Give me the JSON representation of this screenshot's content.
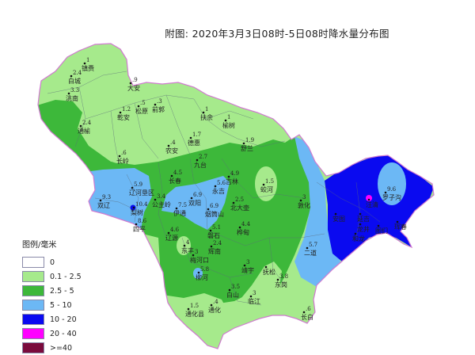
{
  "title": "附图: 2020年3月3日08时-5日08时降水量分布图",
  "legend": {
    "title": "图例/毫米",
    "items": [
      {
        "label": "0",
        "color": "#ffffff"
      },
      {
        "label": "0.1 - 2.5",
        "color": "#a6ea8c"
      },
      {
        "label": "2.5 - 5",
        "color": "#3db83a"
      },
      {
        "label": "5 - 10",
        "color": "#6cb8f5"
      },
      {
        "label": "10 - 20",
        "color": "#0a0af0"
      },
      {
        "label": "20 - 40",
        "color": "#ff00ff"
      },
      {
        "label": ">=40",
        "color": "#7a0a3c"
      }
    ]
  },
  "stations": [
    {
      "name": "镇赉",
      "value": "1"
    },
    {
      "name": "白城",
      "value": "2.4"
    },
    {
      "name": "洮南",
      "value": "3.3"
    },
    {
      "name": "大安",
      "value": ".9"
    },
    {
      "name": "乾安",
      "value": "1.2"
    },
    {
      "name": "松原",
      "value": ".5"
    },
    {
      "name": "前郭",
      "value": ".3"
    },
    {
      "name": "通榆",
      "value": "2.4"
    },
    {
      "name": "长岭",
      "value": ".6"
    },
    {
      "name": "扶余",
      "value": "1"
    },
    {
      "name": "榆树",
      "value": "1"
    },
    {
      "name": "农安",
      "value": ".4"
    },
    {
      "name": "德惠",
      "value": "1.7"
    },
    {
      "name": "舒兰",
      "value": "1.9"
    },
    {
      "name": "九台",
      "value": "2.7"
    },
    {
      "name": "长春",
      "value": "4.5"
    },
    {
      "name": "辽河垦区",
      "value": "5.9"
    },
    {
      "name": "双辽",
      "value": "9.3"
    },
    {
      "name": "公主岭",
      "value": "3.4"
    },
    {
      "name": "双阳",
      "value": "6.9"
    },
    {
      "name": "伊通",
      "value": "7.5"
    },
    {
      "name": "永吉",
      "value": "5.6"
    },
    {
      "name": "吉林",
      "value": "4.9"
    },
    {
      "name": "北大壶",
      "value": "2.5"
    },
    {
      "name": "蛟河",
      "value": "1.5"
    },
    {
      "name": "敦化",
      "value": "3"
    },
    {
      "name": "梨树",
      "value": "10.4"
    },
    {
      "name": "四平",
      "value": "8.6"
    },
    {
      "name": "烟筒山",
      "value": "6.9"
    },
    {
      "name": "磐石",
      "value": "5.1"
    },
    {
      "name": "桦甸",
      "value": "4.4"
    },
    {
      "name": "辉南",
      "value": "2.4"
    },
    {
      "name": "东丰",
      "value": "4"
    },
    {
      "name": "辽源",
      "value": "4.6"
    },
    {
      "name": "梅河口",
      "value": "3"
    },
    {
      "name": "柳河",
      "value": "5.8"
    },
    {
      "name": "靖宇",
      "value": "3"
    },
    {
      "name": "抚松",
      "value": ""
    },
    {
      "name": "东岗",
      "value": "3.8"
    },
    {
      "name": "白山",
      "value": "3.5"
    },
    {
      "name": "临江",
      "value": "3"
    },
    {
      "name": "通化县",
      "value": "1.5"
    },
    {
      "name": "通化",
      "value": ".4"
    },
    {
      "name": "长白",
      "value": ".6"
    },
    {
      "name": "二道",
      "value": "5.7"
    },
    {
      "name": "罗子沟",
      "value": "9.6"
    },
    {
      "name": "汪清",
      "value": ""
    },
    {
      "name": "安图",
      "value": ""
    },
    {
      "name": "延吉",
      "value": ""
    },
    {
      "name": "图们",
      "value": ""
    },
    {
      "name": "珲春",
      "value": ""
    },
    {
      "name": "龙井",
      "value": ""
    },
    {
      "name": "和龙",
      "value": ""
    }
  ]
}
